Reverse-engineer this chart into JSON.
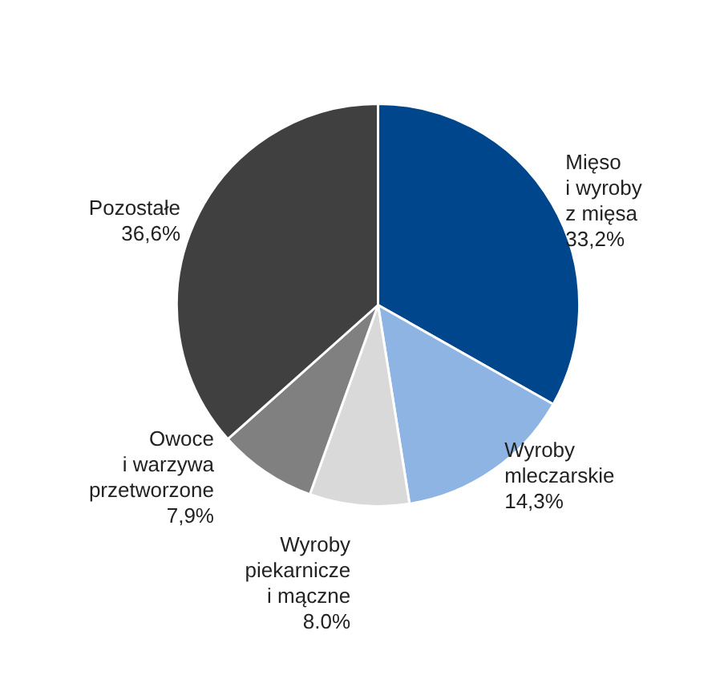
{
  "chart_data": {
    "type": "pie",
    "categories": [
      "Mięso\ni wyroby\nz mięsa",
      "Wyroby\nmleczarskie",
      "Wyroby\npiekarnicze\ni mączne",
      "Owoce\ni warzywa\nprzetworzone",
      "Pozostałe"
    ],
    "values": [
      33.2,
      14.3,
      8.0,
      7.9,
      36.6
    ],
    "value_labels": [
      "33,2%",
      "14,3%",
      "8.0%",
      "7,9%",
      "36,6%"
    ],
    "colors": [
      "#00468c",
      "#8db4e2",
      "#d9d9d9",
      "#808080",
      "#404040"
    ],
    "legend": false
  }
}
